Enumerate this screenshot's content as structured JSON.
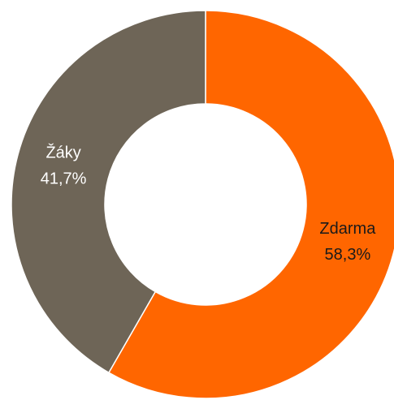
{
  "chart_data": {
    "type": "donut",
    "categories": [
      "Zdarma",
      "Žáky"
    ],
    "values": [
      58.3,
      41.7
    ],
    "value_labels": [
      "58,3%",
      "41,7%"
    ],
    "colors": [
      "#ff6600",
      "#6e6557"
    ],
    "label_colors": [
      "#1a1a1a",
      "#ffffff"
    ]
  }
}
